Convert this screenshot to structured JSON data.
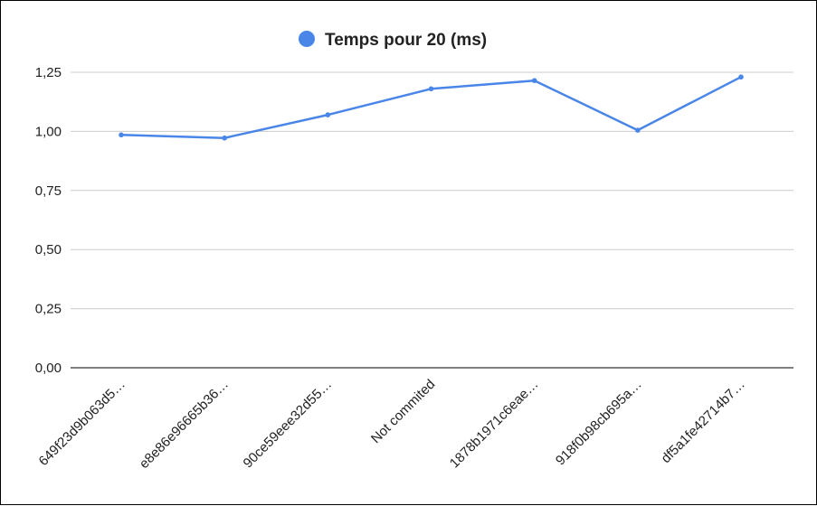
{
  "chart_data": {
    "type": "line",
    "categories": [
      "649f23d9b063d5…",
      "e8e86e96665b36…",
      "90ce59eee32d55…",
      "Not commited",
      "1878b1971c6eae…",
      "918f0b98cb695a…",
      "df5a1fe42714b7…"
    ],
    "series": [
      {
        "name": "Temps pour 20 (ms)",
        "color": "#4a86e8",
        "values": [
          0.985,
          0.972,
          1.07,
          1.18,
          1.215,
          1.005,
          1.23
        ]
      }
    ],
    "yticks": [
      "0,00",
      "0,25",
      "0,50",
      "0,75",
      "1,00",
      "1,25"
    ],
    "ylim": [
      0,
      1.25
    ],
    "grid": true,
    "legend_position": "top"
  }
}
